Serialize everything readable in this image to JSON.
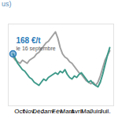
{
  "chart_data": {
    "type": "line",
    "title": "us)",
    "categories": [
      null,
      null,
      null,
      "Oct.",
      null,
      null,
      null,
      "Nov.",
      null,
      null,
      null,
      "Déc.",
      null,
      null,
      null,
      "Janv.",
      null,
      null,
      null,
      "Fév.",
      null,
      null,
      null,
      "Mars",
      null,
      null,
      null,
      "Avril",
      null,
      null,
      null,
      "Mai",
      null,
      null,
      null,
      "Juin",
      null,
      null,
      null,
      "Juil.",
      null,
      null
    ],
    "series": [
      {
        "color": "#a0a0a0",
        "values": [
          166,
          164,
          163,
          162,
          164,
          163,
          162,
          164,
          165,
          166,
          168,
          169,
          171,
          173,
          175,
          176,
          178,
          180,
          182,
          178,
          172,
          168,
          166,
          165,
          163,
          162,
          160,
          158,
          156,
          155,
          153,
          151,
          150,
          149,
          150,
          148,
          150,
          154,
          159,
          164,
          167,
          170
        ]
      },
      {
        "color": "#3f9a8a",
        "values": [
          168,
          165,
          162,
          160,
          158,
          157,
          155,
          153,
          152,
          150,
          149,
          148,
          150,
          152,
          151,
          153,
          154,
          155,
          156,
          155,
          157,
          156,
          158,
          155,
          153,
          152,
          154,
          153,
          155,
          156,
          154,
          152,
          150,
          151,
          149,
          148,
          147,
          150,
          155,
          161,
          167,
          172
        ]
      }
    ],
    "annotation": {
      "x": 0,
      "value": 168,
      "label": "168 €/t",
      "note": "le 16 septembre",
      "color": "#2a7ab9"
    },
    "ylim": [
      135,
      187
    ],
    "yticks": [],
    "tick_labels": "x",
    "grid": false
  }
}
